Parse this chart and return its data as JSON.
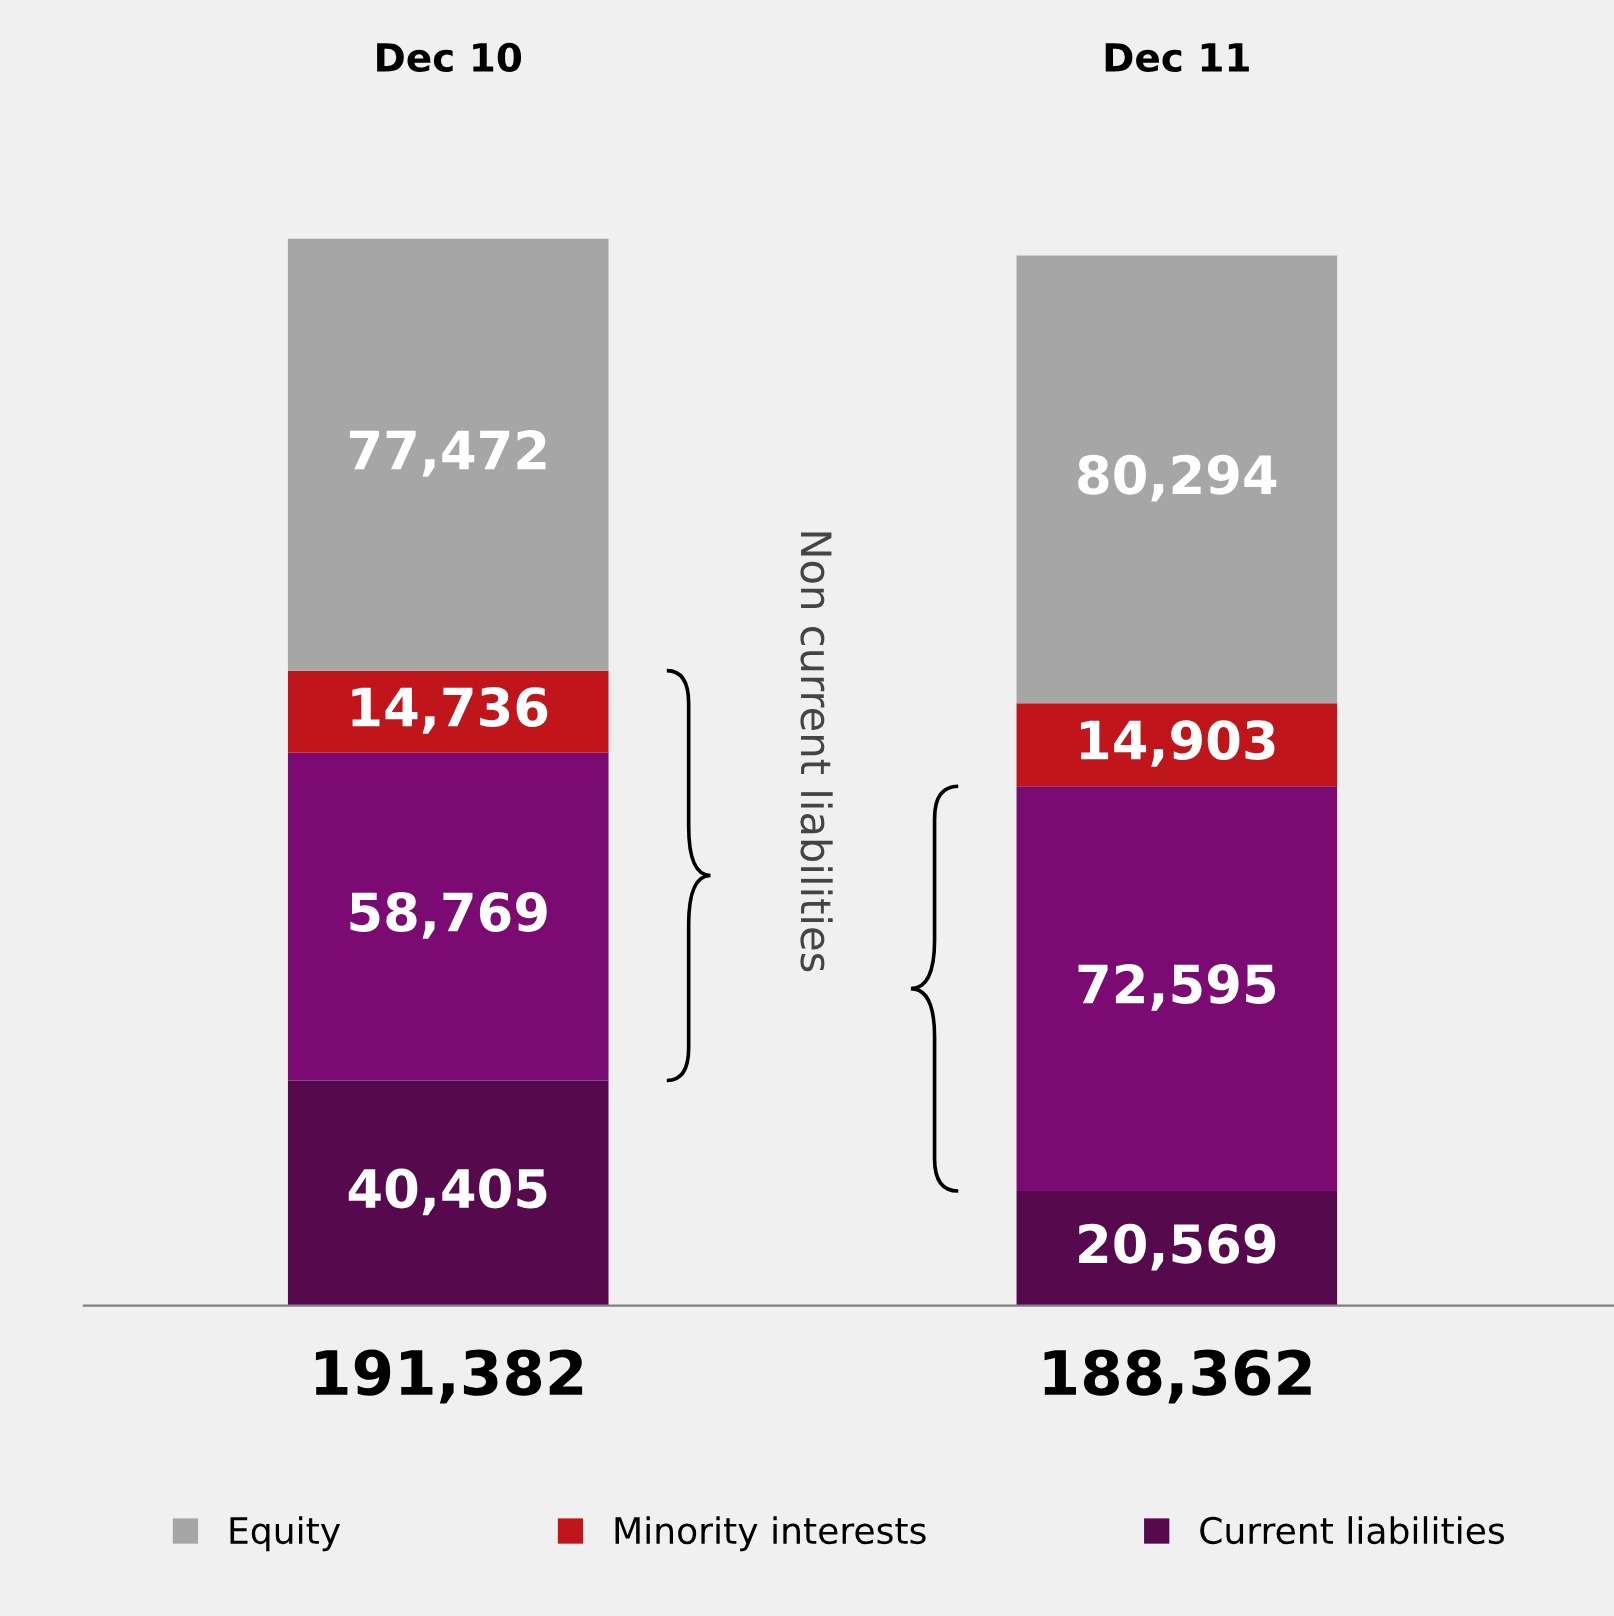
{
  "chart_data": {
    "type": "bar",
    "stacked": true,
    "categories": [
      "Dec 10",
      "Dec 11"
    ],
    "series": [
      {
        "name": "Current liabilities",
        "color": "#560a4d",
        "values": [
          40405,
          20569
        ],
        "value_labels": [
          "40,405",
          "20,569"
        ]
      },
      {
        "color": "#7b0b72",
        "values": [
          58769,
          72595
        ],
        "value_labels": [
          "58,769",
          "72,595"
        ]
      },
      {
        "name": "Minority interests",
        "color": "#c0161b",
        "values": [
          14736,
          14903
        ],
        "value_labels": [
          "14,736",
          "14,903"
        ]
      },
      {
        "name": "Equity",
        "color": "#a6a6a6",
        "values": [
          77472,
          80294
        ],
        "value_labels": [
          "77,472",
          "80,294"
        ]
      }
    ],
    "totals": [
      "191,382",
      "188,362"
    ],
    "annotations": [
      "Non current liabilities"
    ],
    "legend": "bottom",
    "grid": false
  }
}
